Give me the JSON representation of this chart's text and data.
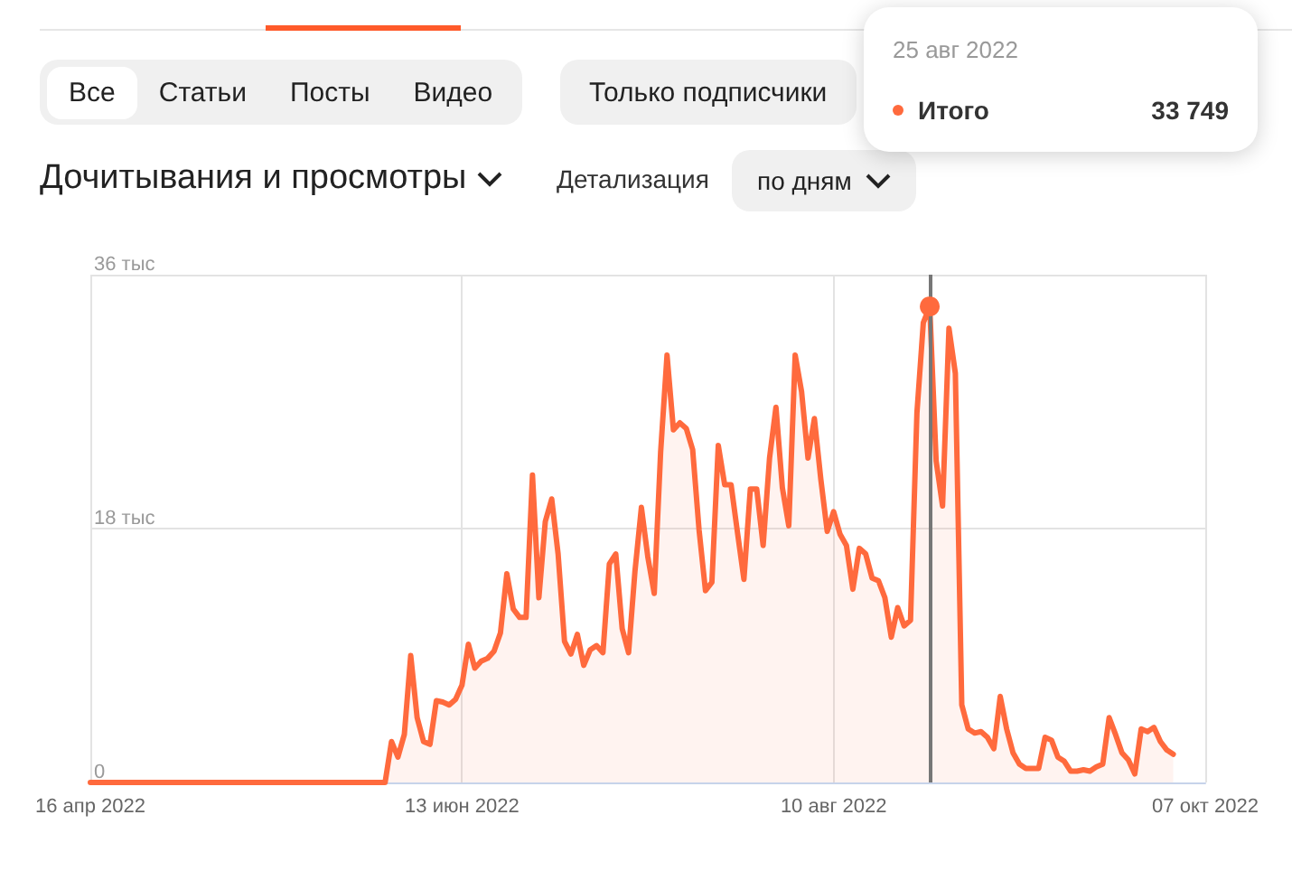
{
  "chart_data": {
    "type": "area",
    "title": "Дочитывания и просмотры",
    "annotations": [
      "Все",
      "Статьи",
      "Посты",
      "Видео",
      "Только подписчики",
      "Детализация",
      "по дням",
      "25 авг 2022",
      "Итого",
      "33 749"
    ],
    "series": [
      {
        "color": "#ff6a3d",
        "x": [
          "2022-04-16",
          "2022-06-01",
          "2022-06-02",
          "2022-06-03",
          "2022-06-04",
          "2022-06-05",
          "2022-06-06",
          "2022-06-07",
          "2022-06-08",
          "2022-06-09",
          "2022-06-10",
          "2022-06-11",
          "2022-06-12",
          "2022-06-13",
          "2022-06-14",
          "2022-06-15",
          "2022-06-16",
          "2022-06-17",
          "2022-06-18",
          "2022-06-19",
          "2022-06-20",
          "2022-06-21",
          "2022-06-22",
          "2022-06-23",
          "2022-06-24",
          "2022-06-25",
          "2022-06-26",
          "2022-06-27",
          "2022-06-28",
          "2022-06-29",
          "2022-06-30",
          "2022-07-01",
          "2022-07-02",
          "2022-07-03",
          "2022-07-04",
          "2022-07-05",
          "2022-07-06",
          "2022-07-07",
          "2022-07-08",
          "2022-07-09",
          "2022-07-10",
          "2022-07-11",
          "2022-07-12",
          "2022-07-13",
          "2022-07-14",
          "2022-07-15",
          "2022-07-16",
          "2022-07-17",
          "2022-07-18",
          "2022-07-19",
          "2022-07-20",
          "2022-07-21",
          "2022-07-22",
          "2022-07-23",
          "2022-07-24",
          "2022-07-25",
          "2022-07-26",
          "2022-07-27",
          "2022-07-28",
          "2022-07-29",
          "2022-07-30",
          "2022-07-31",
          "2022-08-01",
          "2022-08-02",
          "2022-08-03",
          "2022-08-04",
          "2022-08-05",
          "2022-08-06",
          "2022-08-07",
          "2022-08-08",
          "2022-08-09",
          "2022-08-10",
          "2022-08-11",
          "2022-08-12",
          "2022-08-13",
          "2022-08-14",
          "2022-08-15",
          "2022-08-16",
          "2022-08-17",
          "2022-08-18",
          "2022-08-19",
          "2022-08-20",
          "2022-08-21",
          "2022-08-22",
          "2022-08-23",
          "2022-08-24",
          "2022-08-25",
          "2022-08-26",
          "2022-08-27",
          "2022-08-28",
          "2022-08-29",
          "2022-08-30",
          "2022-08-31",
          "2022-09-01",
          "2022-09-02",
          "2022-09-03",
          "2022-09-04",
          "2022-09-05",
          "2022-09-06",
          "2022-09-07",
          "2022-09-08",
          "2022-09-09",
          "2022-09-10",
          "2022-09-11",
          "2022-09-12",
          "2022-09-13",
          "2022-09-14",
          "2022-09-15",
          "2022-09-16",
          "2022-09-17",
          "2022-09-18",
          "2022-09-19",
          "2022-09-20",
          "2022-09-21",
          "2022-09-22",
          "2022-09-23",
          "2022-09-24",
          "2022-09-25",
          "2022-09-26",
          "2022-09-27",
          "2022-09-28",
          "2022-09-29",
          "2022-09-30",
          "2022-10-01",
          "2022-10-02"
        ],
        "values": [
          0,
          0,
          2.9,
          1.8,
          3.4,
          9,
          4.6,
          2.9,
          2.7,
          5.8,
          5.7,
          5.5,
          5.9,
          6.9,
          9.8,
          8.1,
          8.6,
          8.8,
          9.3,
          10.6,
          14.8,
          12.3,
          11.7,
          11.7,
          21.8,
          13.1,
          18.5,
          20.1,
          16.2,
          10,
          9.1,
          10.5,
          8.3,
          9.4,
          9.7,
          9.2,
          15.5,
          16.2,
          10.9,
          9.2,
          15,
          19.5,
          16,
          13.4,
          23.4,
          30.3,
          25,
          25.5,
          25.1,
          23.6,
          17.9,
          13.6,
          14.2,
          23.9,
          21.1,
          21.1,
          17.7,
          14.4,
          20.8,
          20.8,
          16.8,
          23,
          26.6,
          20.9,
          18.2,
          30.3,
          27.7,
          23,
          25.8,
          21.5,
          17.8,
          19.2,
          17.6,
          16.8,
          13.7,
          16.6,
          16.2,
          14.5,
          14.3,
          13.1,
          10.3,
          12.4,
          11.1,
          11.5,
          26.2,
          32.6,
          33.749,
          22.8,
          19.6,
          32.2,
          29,
          5.5,
          3.8,
          3.5,
          3.6,
          3.2,
          2.4,
          6.1,
          3.8,
          2.1,
          1.3,
          1,
          1,
          1,
          3.2,
          3,
          1.8,
          1.5,
          0.8,
          0.8,
          0.9,
          0.8,
          1.1,
          1.3,
          4.6,
          3.4,
          2.1,
          1.6,
          0.6,
          3.8,
          3.6,
          3.9,
          2.9,
          2.3,
          2
        ]
      }
    ],
    "xlim": [
      "2022-04-16",
      "2022-10-07"
    ],
    "xticks": [
      {
        "value": "2022-04-16",
        "label": "16 апр 2022"
      },
      {
        "value": "2022-06-13",
        "label": "13 июн 2022"
      },
      {
        "value": "2022-08-10",
        "label": "10 авг 2022"
      },
      {
        "value": "2022-10-07",
        "label": "07 окт 2022"
      }
    ],
    "ylim": [
      0,
      36
    ],
    "yticks": [
      0,
      {
        "value": 18,
        "label": "18 тыс"
      },
      {
        "value": 36,
        "label": "36 тыс"
      }
    ],
    "ref_lines": [
      {
        "axis": "x",
        "value": "2022-08-25",
        "color": "#777777"
      }
    ],
    "grid": true,
    "marker": "none",
    "line_style": "solid"
  }
}
